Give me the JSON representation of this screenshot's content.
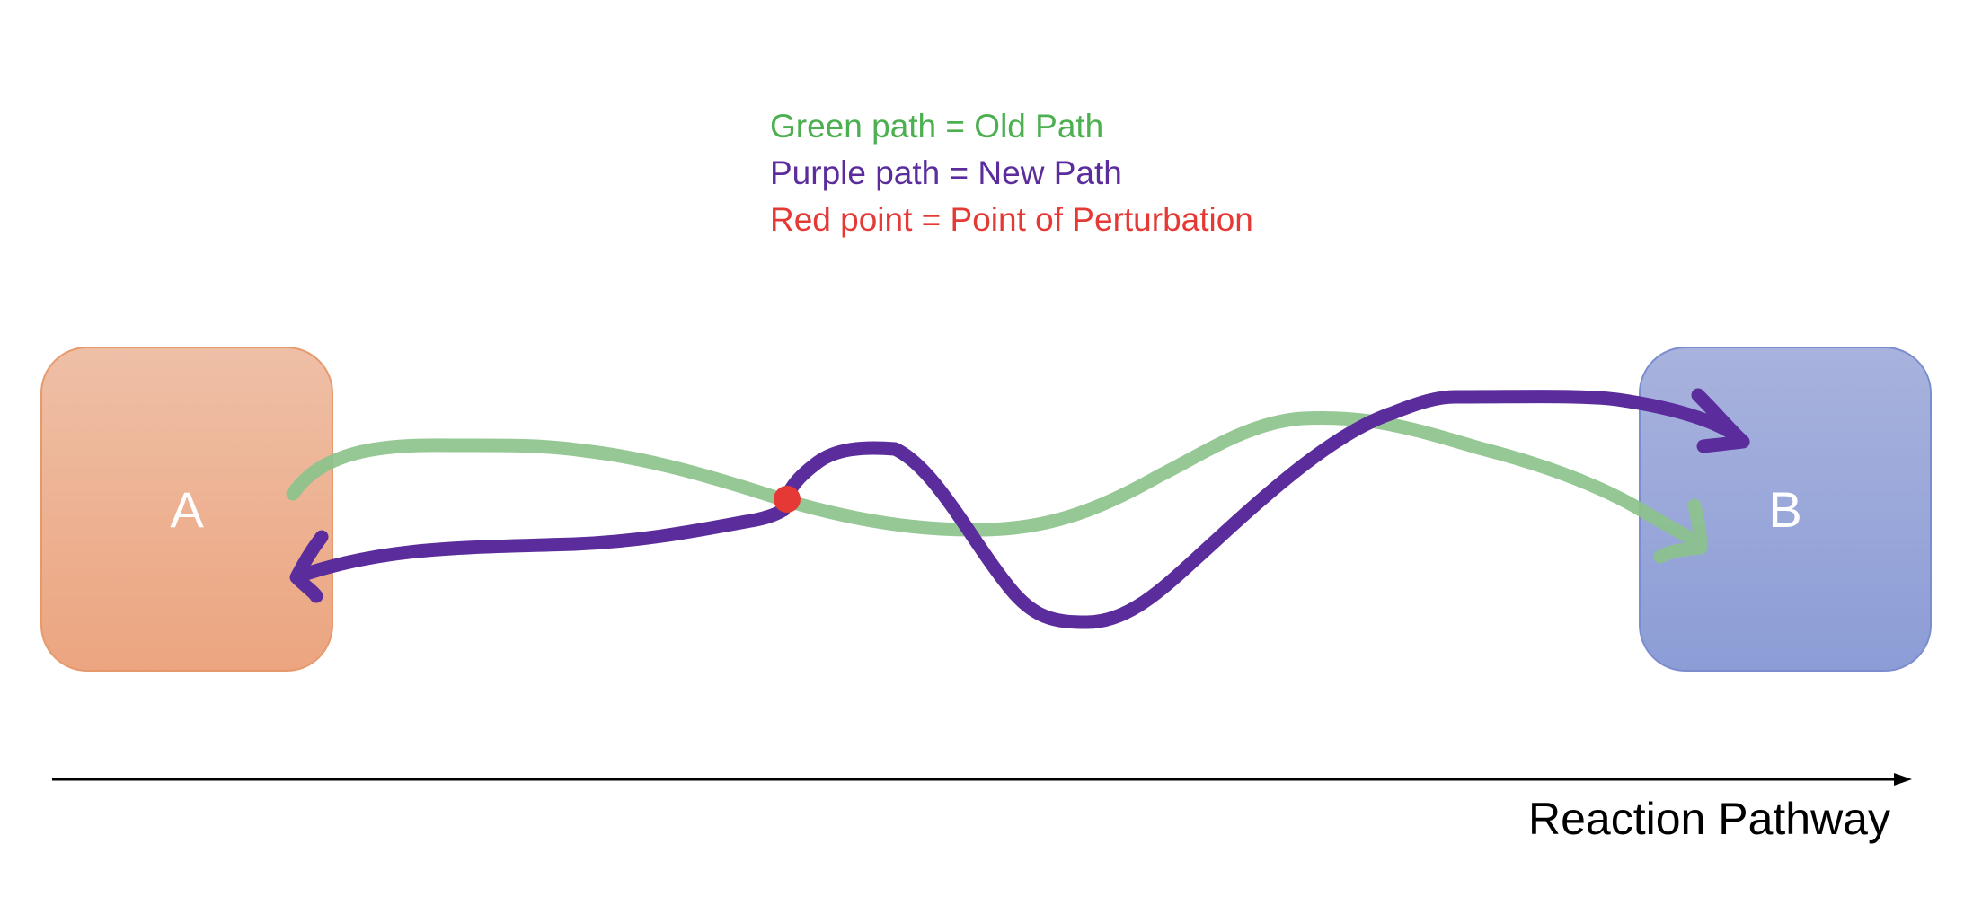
{
  "legend": {
    "green": {
      "text": "Green path = Old Path",
      "color": "#4caf50"
    },
    "purple": {
      "text": "Purple path = New Path",
      "color": "#5b2d9c"
    },
    "red": {
      "text": "Red point = Point of Perturbation",
      "color": "#e53935"
    }
  },
  "states": {
    "a": {
      "label": "A",
      "fill": "#eca580"
    },
    "b": {
      "label": "B",
      "fill": "#8c9dd6"
    }
  },
  "paths": {
    "old_color": "#8cc38c",
    "new_color": "#5b2d9c",
    "perturbation_color": "#e53935"
  },
  "axis": {
    "label": "Reaction Pathway"
  }
}
